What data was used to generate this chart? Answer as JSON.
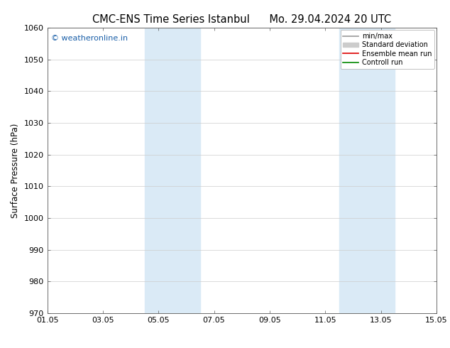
{
  "title": "CMC-ENS Time Series Istanbul",
  "title2": "Mo. 29.04.2024 20 UTC",
  "ylabel": "Surface Pressure (hPa)",
  "ylim": [
    970,
    1060
  ],
  "yticks": [
    970,
    980,
    990,
    1000,
    1010,
    1020,
    1030,
    1040,
    1050,
    1060
  ],
  "xlim_start": 0,
  "xlim_end": 14,
  "xtick_positions": [
    0,
    2,
    4,
    6,
    8,
    10,
    12,
    14
  ],
  "xtick_labels": [
    "01.05",
    "03.05",
    "05.05",
    "07.05",
    "09.05",
    "11.05",
    "13.05",
    "15.05"
  ],
  "shaded_bands": [
    {
      "x_start": 3.5,
      "x_end": 5.5
    },
    {
      "x_start": 10.5,
      "x_end": 12.5
    }
  ],
  "band_color": "#daeaf6",
  "watermark": "© weatheronline.in",
  "watermark_color": "#1a5fa8",
  "legend_items": [
    {
      "label": "min/max",
      "color": "#999999",
      "lw": 1.2,
      "ls": "-"
    },
    {
      "label": "Standard deviation",
      "color": "#cccccc",
      "lw": 5,
      "ls": "-"
    },
    {
      "label": "Ensemble mean run",
      "color": "#dd0000",
      "lw": 1.2,
      "ls": "-"
    },
    {
      "label": "Controll run",
      "color": "#008800",
      "lw": 1.2,
      "ls": "-"
    }
  ],
  "background_color": "#ffffff",
  "grid_color": "#cccccc",
  "title_fontsize": 10.5,
  "axis_label_fontsize": 8.5,
  "tick_fontsize": 8,
  "watermark_fontsize": 8
}
